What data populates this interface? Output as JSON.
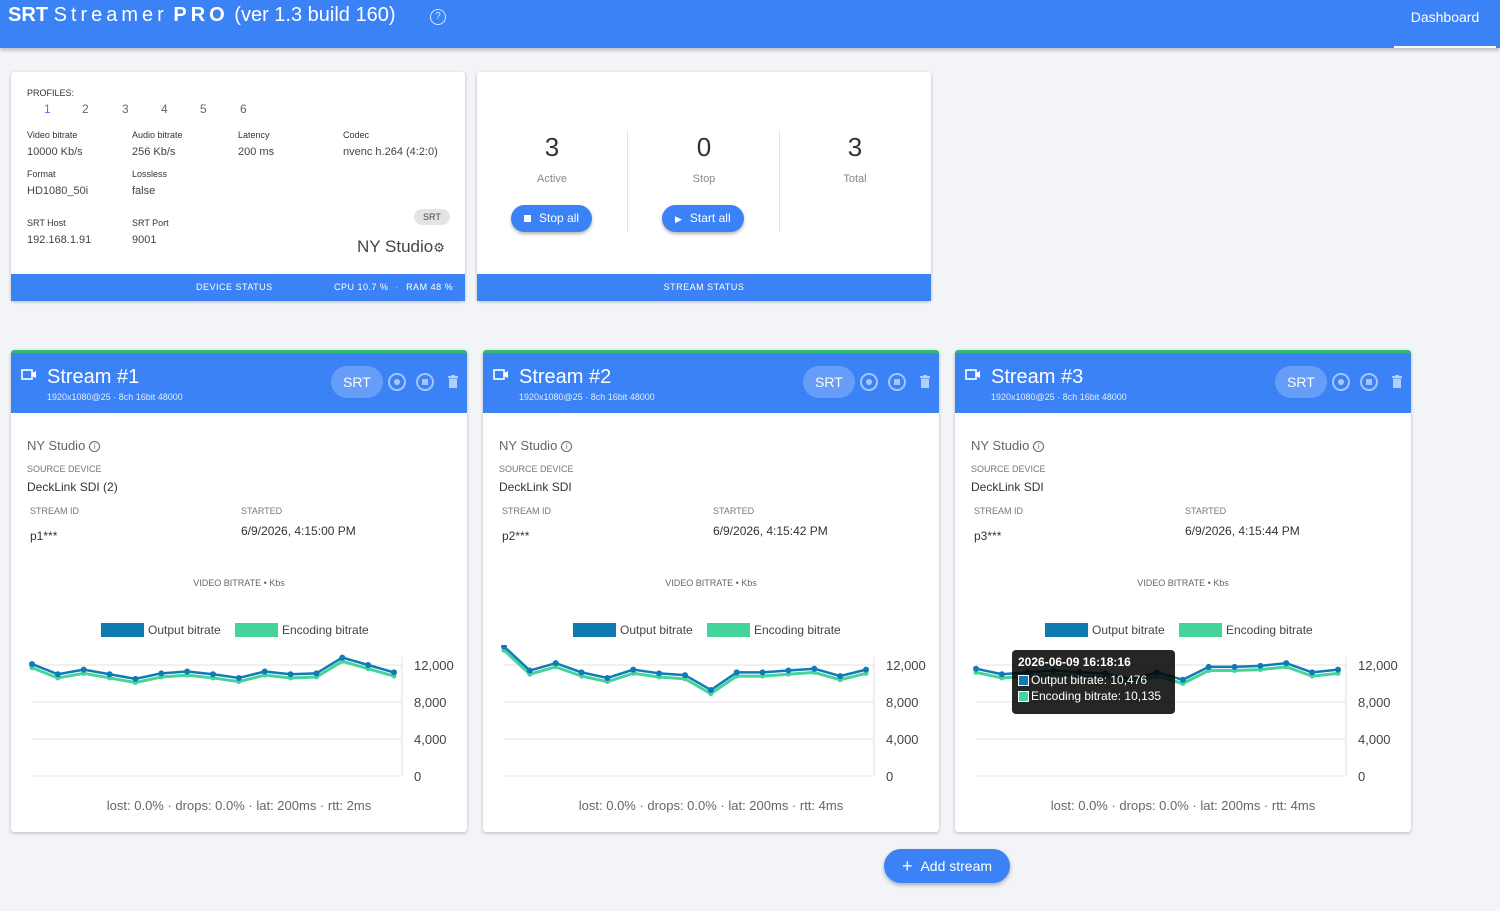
{
  "app": {
    "title_brand": "SRT",
    "title_name": "Streamer",
    "title_pro": "PRO",
    "title_version": "(ver 1.3 build 160)",
    "nav_dashboard": "Dashboard"
  },
  "device": {
    "profiles_label": "PROFILES:",
    "profiles": [
      "1",
      "2",
      "3",
      "4",
      "5",
      "6"
    ],
    "active_profile": "1",
    "fields": {
      "video_bitrate": {
        "label": "Video bitrate",
        "value": "10000 Kb/s"
      },
      "audio_bitrate": {
        "label": "Audio bitrate",
        "value": "256 Kb/s"
      },
      "latency": {
        "label": "Latency",
        "value": "200 ms"
      },
      "codec": {
        "label": "Codec",
        "value": "nvenc h.264 (4:2:0)"
      },
      "format": {
        "label": "Format",
        "value": "HD1080_50i"
      },
      "lossless": {
        "label": "Lossless",
        "value": "false"
      },
      "srt_host": {
        "label": "SRT Host",
        "value": "192.168.1.91"
      },
      "srt_port": {
        "label": "SRT Port",
        "value": "9001"
      }
    },
    "chip": "SRT",
    "studio": "NY Studio",
    "footer_title": "DEVICE STATUS",
    "cpu": "CPU 10.7 %",
    "sep": "·",
    "ram": "RAM 48 %"
  },
  "stream_status": {
    "active": {
      "value": "3",
      "label": "Active"
    },
    "stop": {
      "value": "0",
      "label": "Stop"
    },
    "total": {
      "value": "3",
      "label": "Total"
    },
    "stop_all": "Stop all",
    "start_all": "Start all",
    "footer_title": "STREAM STATUS"
  },
  "streams": [
    {
      "title": "Stream #1",
      "sub": "1920x1080@25 · 8ch 16bit 48000",
      "chip": "SRT",
      "studio": "NY Studio",
      "source_label": "SOURCE DEVICE",
      "source": "DeckLink SDI (2)",
      "stream_id_label": "STREAM ID",
      "stream_id": "p1***",
      "started_label": "STARTED",
      "started": "6/9/2026, 4:15:00 PM",
      "chart_title": "VIDEO BITRATE • Kbs",
      "footer": "lost: 0.0% · drops: 0.0% · lat: 200ms · rtt: 2ms"
    },
    {
      "title": "Stream #2",
      "sub": "1920x1080@25 · 8ch 16bit 48000",
      "chip": "SRT",
      "studio": "NY Studio",
      "source_label": "SOURCE DEVICE",
      "source": "DeckLink SDI",
      "stream_id_label": "STREAM ID",
      "stream_id": "p2***",
      "started_label": "STARTED",
      "started": "6/9/2026, 4:15:42 PM",
      "chart_title": "VIDEO BITRATE • Kbs",
      "footer": "lost: 0.0% · drops: 0.0% · lat: 200ms · rtt: 4ms"
    },
    {
      "title": "Stream #3",
      "sub": "1920x1080@25 · 8ch 16bit 48000",
      "chip": "SRT",
      "studio": "NY Studio",
      "source_label": "SOURCE DEVICE",
      "source": "DeckLink SDI",
      "stream_id_label": "STREAM ID",
      "stream_id": "p3***",
      "started_label": "STARTED",
      "started": "6/9/2026, 4:15:44 PM",
      "chart_title": "VIDEO BITRATE • Kbs",
      "footer": "lost: 0.0% · drops: 0.0% · lat: 200ms · rtt: 4ms"
    }
  ],
  "tooltip": {
    "title": "2026-06-09 16:18:16",
    "output": "Output bitrate: 10,476",
    "encoding": "Encoding bitrate: 10,135"
  },
  "add_stream": "Add stream",
  "colors": {
    "primary": "#3b82f6",
    "output": "#0e7bb5",
    "encoding": "#45d49a",
    "active_border": "#2fbe6f"
  },
  "chart_data": [
    {
      "type": "line",
      "ylim": [
        0,
        12000
      ],
      "yticks": [
        "12,000",
        "8,000",
        "4,000",
        "0"
      ],
      "series": [
        {
          "name": "Output bitrate",
          "values": [
            12100,
            11000,
            11500,
            11000,
            10500,
            11100,
            11300,
            11000,
            10600,
            11300,
            11000,
            11100,
            12800,
            12000,
            11200
          ]
        },
        {
          "name": "Encoding bitrate",
          "values": [
            11700,
            10600,
            11100,
            10600,
            10100,
            10700,
            10900,
            10600,
            10200,
            10900,
            10600,
            10700,
            12400,
            11600,
            10800
          ]
        }
      ]
    },
    {
      "type": "line",
      "ylim": [
        0,
        12000
      ],
      "yticks": [
        "12,000",
        "8,000",
        "4,000",
        "0"
      ],
      "series": [
        {
          "name": "Output bitrate",
          "values": [
            14000,
            11400,
            12200,
            11200,
            10600,
            11500,
            11100,
            10900,
            9300,
            11200,
            11200,
            11400,
            11600,
            10800,
            11500
          ]
        },
        {
          "name": "Encoding bitrate",
          "values": [
            13600,
            11000,
            11800,
            10800,
            10200,
            11100,
            10700,
            10500,
            8900,
            10800,
            10800,
            11000,
            11200,
            10400,
            11100
          ]
        }
      ]
    },
    {
      "type": "line",
      "ylim": [
        0,
        12000
      ],
      "yticks": [
        "12,000",
        "8,000",
        "4,000",
        "0"
      ],
      "series": [
        {
          "name": "Output bitrate",
          "values": [
            11600,
            11000,
            11200,
            11400,
            11200,
            11100,
            10476,
            11200,
            10400,
            11800,
            11800,
            11900,
            12200,
            11200,
            11500
          ]
        },
        {
          "name": "Encoding bitrate",
          "values": [
            11200,
            10600,
            10800,
            11000,
            10800,
            10700,
            10135,
            10800,
            10000,
            11400,
            11400,
            11500,
            11800,
            10800,
            11100
          ]
        }
      ]
    }
  ]
}
